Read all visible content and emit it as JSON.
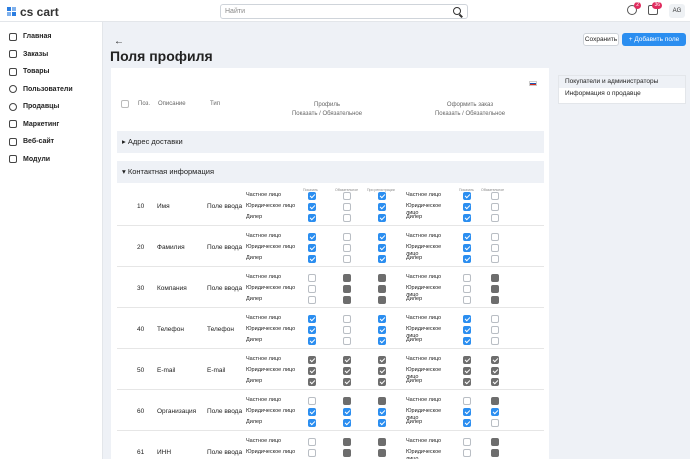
{
  "app": {
    "logo_text": "cs cart"
  },
  "search": {
    "placeholder": "Найти"
  },
  "header": {
    "notif_badge_1": "2",
    "notif_badge_2": "36",
    "avatar": "AG"
  },
  "sidebar": {
    "items": [
      {
        "label": "Главная",
        "icon": "home-icon"
      },
      {
        "label": "Заказы",
        "icon": "cart-icon"
      },
      {
        "label": "Товары",
        "icon": "tag-icon"
      },
      {
        "label": "Пользователи",
        "icon": "user-icon"
      },
      {
        "label": "Продавцы",
        "icon": "users-icon"
      },
      {
        "label": "Маркетинг",
        "icon": "megaphone-icon"
      },
      {
        "label": "Веб-сайт",
        "icon": "monitor-icon"
      },
      {
        "label": "Модули",
        "icon": "puzzle-icon"
      }
    ]
  },
  "page": {
    "title": "Поля профиля",
    "save_label": "Сохранить",
    "add_label": "+ Добавить поле"
  },
  "table": {
    "col_pos": "Поз.",
    "col_desc": "Описание",
    "col_type": "Тип",
    "col_profile": "Профиль",
    "col_profile_sub": "Показать / Обязательное",
    "col_checkout": "Оформить заказ",
    "col_checkout_sub": "Показать / Обязательное",
    "sub_show": "Показать",
    "sub_required": "Обязательное",
    "sub_registration": "При регистрации",
    "sections": [
      "Адрес доставки",
      "Контактная информация"
    ],
    "user_types": [
      "Частное лицо",
      "Юридическое лицо",
      "Дилер"
    ],
    "rows": [
      {
        "pos": "10",
        "desc": "Имя",
        "type": "Поле ввода"
      },
      {
        "pos": "20",
        "desc": "Фамилия",
        "type": "Поле ввода"
      },
      {
        "pos": "30",
        "desc": "Компания",
        "type": "Поле ввода"
      },
      {
        "pos": "40",
        "desc": "Телефон",
        "type": "Телефон"
      },
      {
        "pos": "50",
        "desc": "E-mail",
        "type": "E-mail"
      },
      {
        "pos": "60",
        "desc": "Организация",
        "type": "Поле ввода"
      },
      {
        "pos": "61",
        "desc": "ИНН",
        "type": "Поле ввода"
      }
    ]
  },
  "right_panel": {
    "items": [
      "Покупатели и администраторы",
      "Информация о продавце"
    ]
  }
}
